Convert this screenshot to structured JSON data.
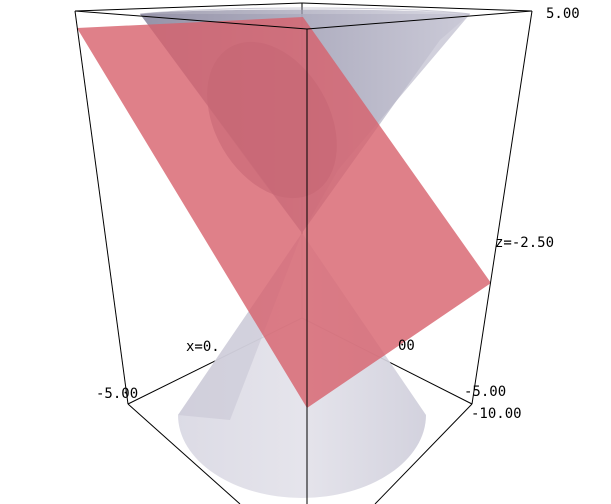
{
  "figure": {
    "axis_labels": {
      "top_right": "5.00",
      "z_mid": "z=-2.50",
      "x_mid": "x=0.",
      "x_mid_tail": "00",
      "bottom_left": "-5.00",
      "bottom_right_y": "-5.00",
      "bottom_right_z": "-10.00"
    },
    "colors": {
      "cone": "#b9b8cc",
      "cone_shadow": "#7d7a92",
      "plane": "#d7606c",
      "box": "#000000"
    }
  }
}
